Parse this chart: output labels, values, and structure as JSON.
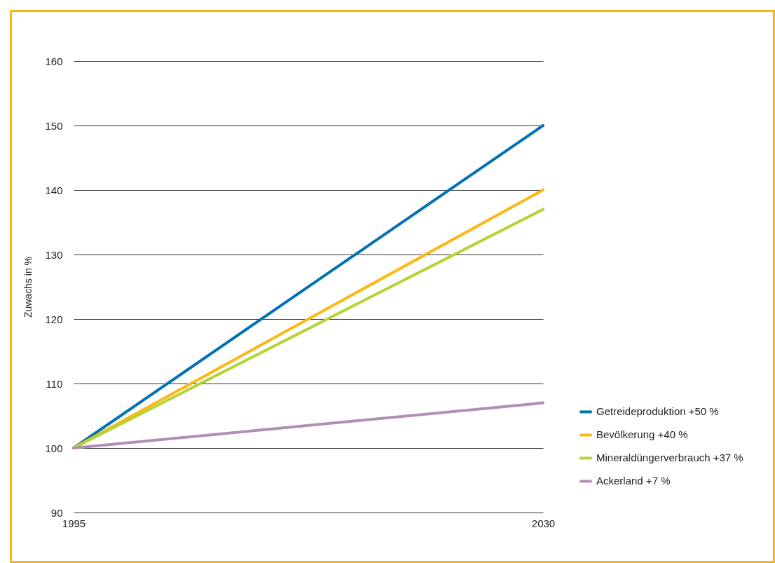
{
  "chart_data": {
    "type": "line",
    "ylabel": "Zuwachs in %",
    "x": [
      1995,
      2030
    ],
    "xlim": [
      1995,
      2030
    ],
    "xticks": [
      1995,
      2030
    ],
    "ylim": [
      90,
      160
    ],
    "yticks": [
      90,
      100,
      110,
      120,
      130,
      140,
      150,
      160
    ],
    "grid": "y",
    "legend": "bottom right",
    "line_style": "solid",
    "series": [
      {
        "name": "Getreideproduktion +50 %",
        "color": "#0071b3",
        "values": [
          100,
          150
        ]
      },
      {
        "name": "Bevölkerung +40 %",
        "color": "#fbb813",
        "values": [
          100,
          140
        ]
      },
      {
        "name": "Mineraldüngerverbrauch +37 %",
        "color": "#b5d334",
        "values": [
          100,
          137
        ]
      },
      {
        "name": "Ackerland +7 %",
        "color": "#b08fb5",
        "values": [
          100,
          107
        ]
      }
    ]
  }
}
